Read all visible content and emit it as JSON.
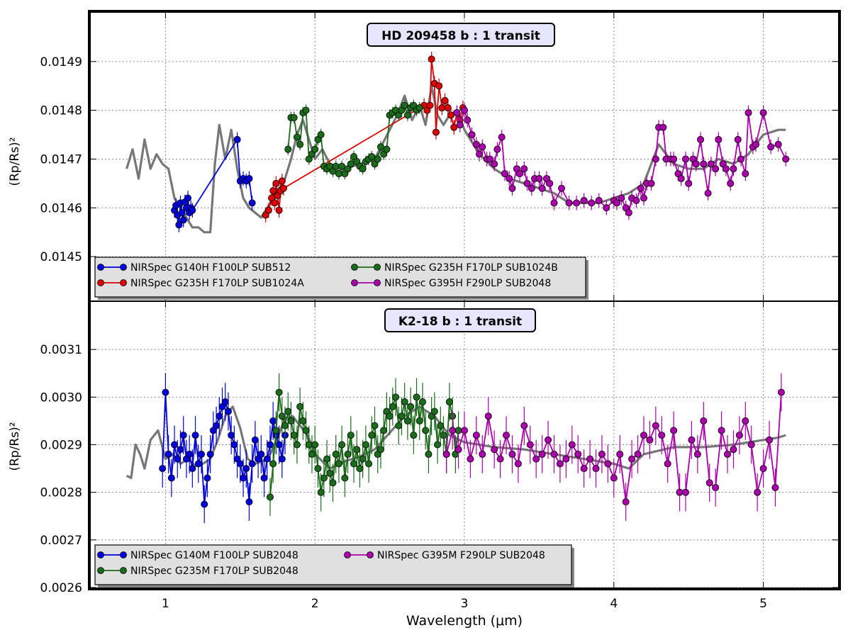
{
  "figure": {
    "xlabel": "Wavelength (μm)",
    "xlim": [
      0.5,
      5.5
    ],
    "xticks": [
      1,
      2,
      3,
      4,
      5
    ]
  },
  "chart_data": [
    {
      "type": "line",
      "title": "HD 209458 b : 1 transit",
      "xlabel": "Wavelength (μm)",
      "ylabel": "(Rp/Rs)²",
      "ylim": [
        0.01441,
        0.015
      ],
      "yticks": [
        "0.0145",
        "0.0146",
        "0.0147",
        "0.0148",
        "0.0149"
      ],
      "grid": true,
      "legend_position": "lower-left",
      "model": {
        "color": "#777777",
        "x": [
          0.74,
          0.78,
          0.82,
          0.86,
          0.9,
          0.94,
          0.98,
          1.02,
          1.06,
          1.1,
          1.14,
          1.18,
          1.22,
          1.26,
          1.3,
          1.33,
          1.36,
          1.4,
          1.44,
          1.48,
          1.52,
          1.56,
          1.6,
          1.64,
          1.68,
          1.72,
          1.76,
          1.8,
          1.84,
          1.88,
          1.92,
          1.96,
          2.0,
          2.05,
          2.1,
          2.2,
          2.3,
          2.4,
          2.5,
          2.55,
          2.6,
          2.65,
          2.7,
          2.74,
          2.78,
          2.82,
          2.86,
          2.9,
          2.95,
          3.0,
          3.1,
          3.2,
          3.3,
          3.4,
          3.5,
          3.6,
          3.7,
          3.8,
          3.9,
          4.0,
          4.1,
          4.2,
          4.3,
          4.4,
          4.5,
          4.6,
          4.7,
          4.8,
          4.9,
          5.0,
          5.1,
          5.15
        ],
        "y": [
          0.01468,
          0.01472,
          0.01466,
          0.01474,
          0.01468,
          0.01471,
          0.01469,
          0.01468,
          0.01462,
          0.0146,
          0.01458,
          0.01456,
          0.01456,
          0.01455,
          0.01455,
          0.01469,
          0.01477,
          0.0147,
          0.01476,
          0.01468,
          0.01462,
          0.0146,
          0.01459,
          0.01458,
          0.0146,
          0.01462,
          0.01464,
          0.01466,
          0.0147,
          0.01475,
          0.01478,
          0.01474,
          0.0147,
          0.01472,
          0.01469,
          0.01468,
          0.01469,
          0.0147,
          0.01476,
          0.01479,
          0.01483,
          0.01478,
          0.01481,
          0.01477,
          0.01485,
          0.01479,
          0.01477,
          0.01479,
          0.0148,
          0.01476,
          0.01471,
          0.01468,
          0.01466,
          0.01465,
          0.01464,
          0.01463,
          0.01461,
          0.01461,
          0.01461,
          0.01462,
          0.01463,
          0.01465,
          0.01473,
          0.01469,
          0.01468,
          0.01468,
          0.0147,
          0.01469,
          0.01471,
          0.01475,
          0.01476,
          0.01476
        ]
      },
      "series": [
        {
          "name": "NIRSpec G140H F100LP SUB512",
          "color": "#0000dd",
          "x": [
            1.06,
            1.07,
            1.08,
            1.09,
            1.1,
            1.11,
            1.12,
            1.13,
            1.14,
            1.15,
            1.16,
            1.17,
            1.18,
            1.48,
            1.5,
            1.52,
            1.54,
            1.56,
            1.58
          ],
          "y": [
            0.014595,
            0.014605,
            0.014585,
            0.014565,
            0.01461,
            0.01459,
            0.014575,
            0.014612,
            0.0146,
            0.01462,
            0.01459,
            0.0146,
            0.014595,
            0.01474,
            0.014655,
            0.01466,
            0.014655,
            0.01466,
            0.01461
          ],
          "err": 1.5e-05
        },
        {
          "name": "NIRSpec G235H F170LP SUB1024A",
          "color": "#dd0000",
          "x": [
            1.67,
            1.69,
            1.71,
            1.72,
            1.73,
            1.74,
            1.75,
            1.76,
            1.77,
            1.78,
            1.79,
            2.73,
            2.75,
            2.77,
            2.78,
            2.8,
            2.81,
            2.83,
            2.85,
            2.87,
            2.89,
            2.91,
            2.93,
            2.95,
            2.97,
            2.99
          ],
          "y": [
            0.014585,
            0.014595,
            0.01462,
            0.014635,
            0.01461,
            0.01465,
            0.014625,
            0.014595,
            0.014635,
            0.014655,
            0.01464,
            0.01481,
            0.0148,
            0.01481,
            0.014905,
            0.014855,
            0.014755,
            0.01485,
            0.014805,
            0.01482,
            0.014805,
            0.01479,
            0.014765,
            0.014795,
            0.01478,
            0.014805
          ],
          "err": 1.5e-05
        },
        {
          "name": "NIRSpec G235H F170LP SUB1024B",
          "color": "#1a6b1a",
          "x": [
            1.82,
            1.84,
            1.86,
            1.88,
            1.9,
            1.92,
            1.94,
            1.96,
            1.98,
            2.0,
            2.02,
            2.04,
            2.06,
            2.08,
            2.1,
            2.12,
            2.14,
            2.16,
            2.18,
            2.2,
            2.22,
            2.24,
            2.26,
            2.28,
            2.3,
            2.32,
            2.34,
            2.36,
            2.38,
            2.4,
            2.42,
            2.44,
            2.46,
            2.48,
            2.5,
            2.52,
            2.54,
            2.56,
            2.58,
            2.6,
            2.62,
            2.64,
            2.66,
            2.68,
            2.7
          ],
          "y": [
            0.01472,
            0.014785,
            0.014785,
            0.014745,
            0.01473,
            0.014795,
            0.0148,
            0.0147,
            0.01471,
            0.01472,
            0.01474,
            0.01475,
            0.014685,
            0.01468,
            0.014685,
            0.014675,
            0.014685,
            0.01467,
            0.014685,
            0.01467,
            0.01468,
            0.01469,
            0.014705,
            0.014695,
            0.014685,
            0.01468,
            0.014695,
            0.0147,
            0.014705,
            0.01469,
            0.0147,
            0.014725,
            0.01471,
            0.01472,
            0.01479,
            0.014795,
            0.0148,
            0.01479,
            0.0148,
            0.01481,
            0.01479,
            0.014805,
            0.01481,
            0.0148,
            0.014805
          ],
          "err": 1.2e-05
        },
        {
          "name": "NIRSpec G395H F290LP SUB2048",
          "color": "#aa00aa",
          "x": [
            2.95,
            2.97,
            3.0,
            3.02,
            3.05,
            3.08,
            3.1,
            3.12,
            3.15,
            3.17,
            3.2,
            3.22,
            3.25,
            3.27,
            3.3,
            3.32,
            3.35,
            3.37,
            3.4,
            3.42,
            3.45,
            3.47,
            3.5,
            3.52,
            3.55,
            3.57,
            3.6,
            3.65,
            3.7,
            3.75,
            3.8,
            3.85,
            3.9,
            3.95,
            4.0,
            4.02,
            4.05,
            4.08,
            4.1,
            4.12,
            4.15,
            4.18,
            4.2,
            4.22,
            4.25,
            4.28,
            4.3,
            4.33,
            4.35,
            4.38,
            4.4,
            4.43,
            4.45,
            4.48,
            4.5,
            4.53,
            4.55,
            4.58,
            4.6,
            4.63,
            4.65,
            4.68,
            4.7,
            4.73,
            4.75,
            4.78,
            4.8,
            4.83,
            4.85,
            4.88,
            4.9,
            4.93,
            4.95,
            5.0,
            5.05,
            5.1,
            5.15
          ],
          "y": [
            0.014795,
            0.01477,
            0.0148,
            0.01478,
            0.01475,
            0.01473,
            0.01471,
            0.014725,
            0.0147,
            0.0147,
            0.01469,
            0.01472,
            0.014745,
            0.01467,
            0.01466,
            0.01464,
            0.01468,
            0.01467,
            0.01468,
            0.01465,
            0.01464,
            0.01466,
            0.01466,
            0.01464,
            0.01466,
            0.01465,
            0.01461,
            0.01464,
            0.01461,
            0.01461,
            0.014615,
            0.01461,
            0.014615,
            0.0146,
            0.014615,
            0.01461,
            0.01462,
            0.0146,
            0.01459,
            0.01462,
            0.014615,
            0.01464,
            0.01462,
            0.01465,
            0.01465,
            0.0147,
            0.014765,
            0.014765,
            0.0147,
            0.0147,
            0.0147,
            0.01467,
            0.01466,
            0.0147,
            0.01465,
            0.0147,
            0.01469,
            0.01474,
            0.01469,
            0.01463,
            0.01469,
            0.01468,
            0.01474,
            0.01469,
            0.01468,
            0.01465,
            0.01468,
            0.01474,
            0.0147,
            0.01467,
            0.014795,
            0.014725,
            0.01473,
            0.014795,
            0.014725,
            0.01473,
            0.0147
          ],
          "err": 1.5e-05
        }
      ]
    },
    {
      "type": "line",
      "title": "K2-18 b : 1 transit",
      "xlabel": "Wavelength (μm)",
      "ylabel": "(Rp/Rs)²",
      "ylim": [
        0.0026,
        0.0032
      ],
      "yticks": [
        "0.0026",
        "0.0027",
        "0.0028",
        "0.0029",
        "0.0030",
        "0.0031"
      ],
      "grid": true,
      "legend_position": "lower-left",
      "model": {
        "color": "#777777",
        "x": [
          0.74,
          0.77,
          0.8,
          0.83,
          0.86,
          0.9,
          0.95,
          1.0,
          1.05,
          1.1,
          1.15,
          1.2,
          1.25,
          1.3,
          1.35,
          1.4,
          1.45,
          1.5,
          1.55,
          1.6,
          1.65,
          1.7,
          1.75,
          1.8,
          1.85,
          1.9,
          1.95,
          2.0,
          2.1,
          2.2,
          2.3,
          2.4,
          2.5,
          2.6,
          2.7,
          2.8,
          2.9,
          3.0,
          3.2,
          3.4,
          3.6,
          3.8,
          4.0,
          4.1,
          4.2,
          4.4,
          4.6,
          4.8,
          5.0,
          5.1,
          5.15
        ],
        "y": [
          0.002835,
          0.00283,
          0.0029,
          0.00288,
          0.00285,
          0.00291,
          0.00293,
          0.00287,
          0.00288,
          0.00286,
          0.00287,
          0.002855,
          0.00286,
          0.00287,
          0.00291,
          0.00296,
          0.00298,
          0.002935,
          0.00287,
          0.00286,
          0.002865,
          0.00288,
          0.002915,
          0.002955,
          0.00296,
          0.00294,
          0.00292,
          0.00288,
          0.00285,
          0.002865,
          0.002875,
          0.00289,
          0.002925,
          0.00296,
          0.00298,
          0.00296,
          0.00292,
          0.002905,
          0.002895,
          0.00289,
          0.00288,
          0.00287,
          0.00286,
          0.00285,
          0.00288,
          0.002895,
          0.002895,
          0.0029,
          0.00291,
          0.002915,
          0.00292
        ]
      },
      "series": [
        {
          "name": "NIRSpec G140M F100LP SUB2048",
          "color": "#0000dd",
          "x": [
            0.98,
            1.0,
            1.02,
            1.04,
            1.06,
            1.08,
            1.1,
            1.12,
            1.14,
            1.16,
            1.18,
            1.2,
            1.22,
            1.24,
            1.26,
            1.28,
            1.3,
            1.32,
            1.34,
            1.36,
            1.38,
            1.4,
            1.42,
            1.44,
            1.46,
            1.48,
            1.5,
            1.52,
            1.54,
            1.56,
            1.58,
            1.6,
            1.62,
            1.64,
            1.66,
            1.68,
            1.7,
            1.72,
            1.74,
            1.76,
            1.78,
            1.8
          ],
          "y": [
            0.00285,
            0.00301,
            0.00288,
            0.00283,
            0.0029,
            0.00287,
            0.00289,
            0.00292,
            0.00287,
            0.00288,
            0.00285,
            0.00292,
            0.00286,
            0.00288,
            0.002775,
            0.00283,
            0.00288,
            0.00293,
            0.00294,
            0.00296,
            0.00298,
            0.00299,
            0.00297,
            0.00292,
            0.0029,
            0.00287,
            0.00286,
            0.00283,
            0.00285,
            0.00278,
            0.00286,
            0.00291,
            0.00287,
            0.00288,
            0.00283,
            0.00287,
            0.0029,
            0.00295,
            0.00292,
            0.0029,
            0.00287,
            0.00292
          ],
          "err": 4e-05
        },
        {
          "name": "NIRSpec G235M F170LP SUB2048",
          "color": "#1a6b1a",
          "x": [
            1.7,
            1.72,
            1.74,
            1.76,
            1.78,
            1.8,
            1.82,
            1.84,
            1.86,
            1.88,
            1.9,
            1.92,
            1.94,
            1.96,
            1.98,
            2.0,
            2.02,
            2.04,
            2.06,
            2.08,
            2.1,
            2.12,
            2.14,
            2.16,
            2.18,
            2.2,
            2.22,
            2.24,
            2.26,
            2.28,
            2.3,
            2.32,
            2.34,
            2.36,
            2.38,
            2.4,
            2.42,
            2.44,
            2.46,
            2.48,
            2.5,
            2.52,
            2.54,
            2.56,
            2.58,
            2.6,
            2.62,
            2.64,
            2.66,
            2.68,
            2.7,
            2.72,
            2.74,
            2.76,
            2.78,
            2.8,
            2.82,
            2.84,
            2.86,
            2.88,
            2.9,
            2.92,
            2.94,
            2.96
          ],
          "y": [
            0.00279,
            0.00286,
            0.00293,
            0.00301,
            0.00296,
            0.00294,
            0.00297,
            0.00295,
            0.00292,
            0.0029,
            0.00298,
            0.00295,
            0.00293,
            0.0029,
            0.00288,
            0.0029,
            0.00285,
            0.0028,
            0.00283,
            0.00287,
            0.00284,
            0.00282,
            0.00288,
            0.00286,
            0.0029,
            0.00283,
            0.00288,
            0.00292,
            0.00286,
            0.00289,
            0.00285,
            0.00287,
            0.0029,
            0.00286,
            0.00292,
            0.00294,
            0.00288,
            0.00289,
            0.00293,
            0.00297,
            0.00296,
            0.00298,
            0.003,
            0.00294,
            0.00296,
            0.00299,
            0.00295,
            0.00298,
            0.00292,
            0.003,
            0.00295,
            0.00299,
            0.00293,
            0.00288,
            0.00296,
            0.00297,
            0.0029,
            0.00294,
            0.00292,
            0.00288,
            0.00299,
            0.00296,
            0.00288,
            0.00293
          ],
          "err": 4e-05
        },
        {
          "name": "NIRSpec G395M F290LP SUB2048",
          "color": "#aa00aa",
          "x": [
            2.88,
            2.92,
            2.96,
            3.0,
            3.04,
            3.08,
            3.12,
            3.16,
            3.2,
            3.24,
            3.28,
            3.32,
            3.36,
            3.4,
            3.44,
            3.48,
            3.52,
            3.56,
            3.6,
            3.64,
            3.68,
            3.72,
            3.76,
            3.8,
            3.84,
            3.88,
            3.92,
            3.96,
            4.0,
            4.04,
            4.08,
            4.12,
            4.16,
            4.2,
            4.24,
            4.28,
            4.32,
            4.36,
            4.4,
            4.44,
            4.48,
            4.52,
            4.56,
            4.6,
            4.64,
            4.68,
            4.72,
            4.76,
            4.8,
            4.84,
            4.88,
            4.92,
            4.96,
            5.0,
            5.04,
            5.08,
            5.12
          ],
          "y": [
            0.00288,
            0.00293,
            0.00289,
            0.00293,
            0.00287,
            0.00292,
            0.00288,
            0.00296,
            0.00289,
            0.00287,
            0.00292,
            0.00288,
            0.00286,
            0.00294,
            0.0029,
            0.00287,
            0.00288,
            0.00291,
            0.00288,
            0.00286,
            0.00287,
            0.0029,
            0.00288,
            0.00285,
            0.00287,
            0.00285,
            0.00288,
            0.00286,
            0.00283,
            0.00288,
            0.00278,
            0.00287,
            0.00288,
            0.00292,
            0.00291,
            0.00294,
            0.00292,
            0.00286,
            0.00293,
            0.0028,
            0.0028,
            0.00291,
            0.00288,
            0.00295,
            0.00282,
            0.00281,
            0.00293,
            0.00288,
            0.00289,
            0.00292,
            0.00295,
            0.0029,
            0.0028,
            0.00285,
            0.00291,
            0.00281,
            0.00301
          ],
          "err": 4e-05
        }
      ]
    }
  ]
}
